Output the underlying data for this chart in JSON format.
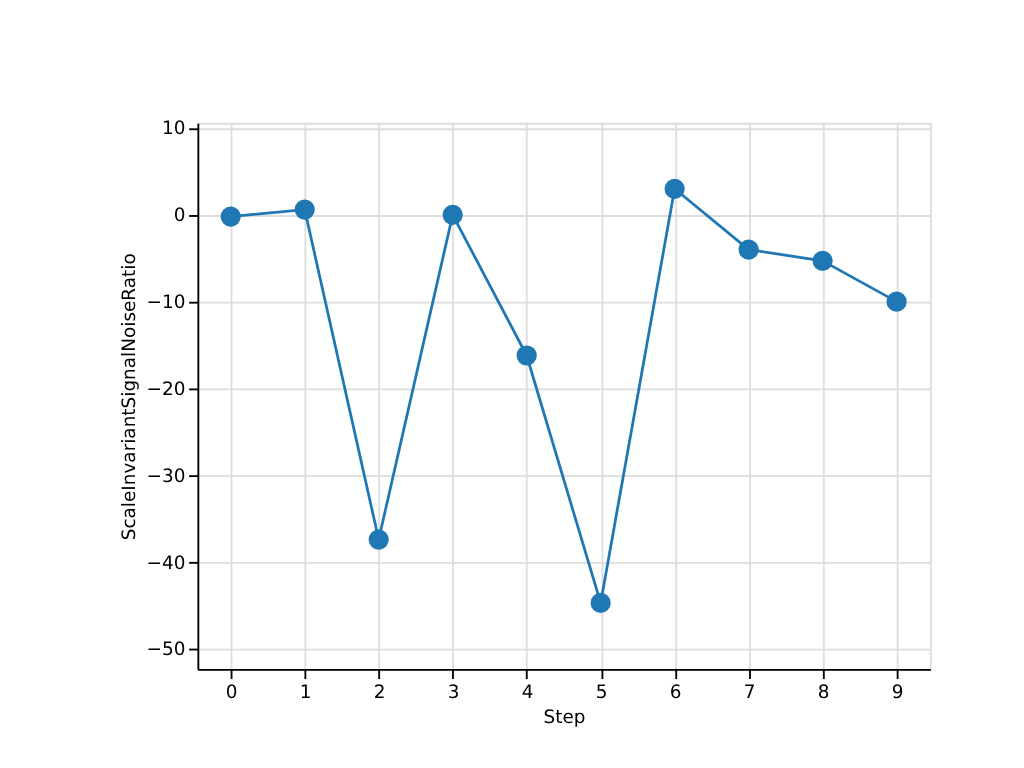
{
  "chart_data": {
    "type": "line",
    "xlabel": "Step",
    "ylabel": "ScaleInvariantSignalNoiseRatio",
    "x": [
      0,
      1,
      2,
      3,
      4,
      5,
      6,
      7,
      8,
      9
    ],
    "series": [
      {
        "color": "#1f77b4",
        "values": [
          -0.2,
          0.6,
          -37.4,
          0.0,
          -16.2,
          -44.7,
          3.0,
          -4.0,
          -5.3,
          -10.0
        ]
      }
    ],
    "xlim": [
      -0.45,
      9.45
    ],
    "xticks": [
      0,
      1,
      2,
      3,
      4,
      5,
      6,
      7,
      8,
      9
    ],
    "ylim": [
      -52.3,
      10.6
    ],
    "yticks": [
      -50,
      -40,
      -30,
      -20,
      -10,
      0,
      10
    ],
    "grid": true,
    "marker": "circle",
    "line_style": "solid"
  }
}
